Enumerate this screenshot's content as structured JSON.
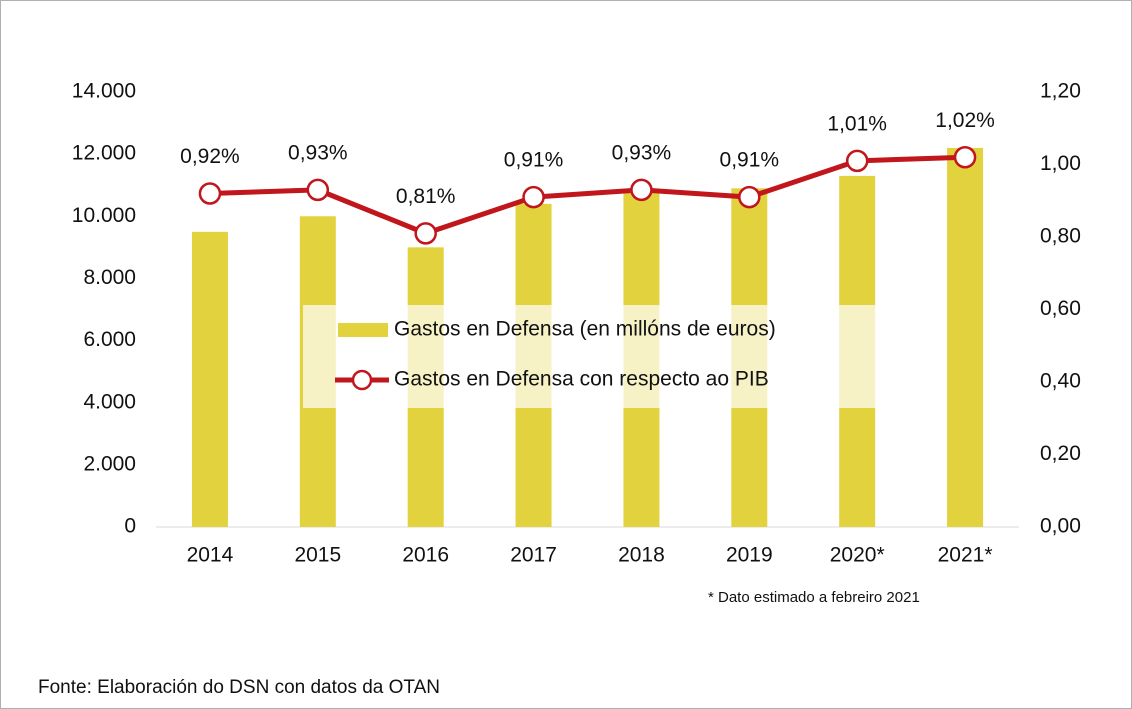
{
  "chart_data": {
    "type": "bar",
    "categories": [
      "2014",
      "2015",
      "2016",
      "2017",
      "2018",
      "2019",
      "2020*",
      "2021*"
    ],
    "series": [
      {
        "name": "Gastos en Defensa (en millóns de euros)",
        "type": "bar",
        "color": "#e2d23e",
        "values": [
          9500,
          10000,
          9000,
          10400,
          10800,
          10900,
          11300,
          12200
        ]
      },
      {
        "name": "Gastos en Defensa con respecto ao PIB",
        "type": "line",
        "axis": "y2",
        "color": "#c0161c",
        "values": [
          0.92,
          0.93,
          0.81,
          0.91,
          0.93,
          0.91,
          1.01,
          1.02
        ],
        "value_labels": [
          "0,92%",
          "0,93%",
          "0,81%",
          "0,91%",
          "0,93%",
          "0,91%",
          "1,01%",
          "1,02%"
        ]
      }
    ],
    "ylim": [
      0,
      14000
    ],
    "yticks": [
      0,
      {
        "value": 2000,
        "label": "2.000"
      },
      {
        "value": 4000,
        "label": "4.000"
      },
      {
        "value": 6000,
        "label": "6.000"
      },
      {
        "value": 8000,
        "label": "8.000"
      },
      {
        "value": 10000,
        "label": "10.000"
      },
      {
        "value": 12000,
        "label": "12.000"
      },
      {
        "value": 14000,
        "label": "14.000"
      }
    ],
    "y2lim": [
      0,
      1.2
    ],
    "y2ticks": [
      {
        "value": 0,
        "label": "0,00"
      },
      {
        "value": 0.2,
        "label": "0,20"
      },
      {
        "value": 0.4,
        "label": "0,40"
      },
      {
        "value": 0.6,
        "label": "0,60"
      },
      {
        "value": 0.8,
        "label": "0,80"
      },
      {
        "value": 1.0,
        "label": "1,00"
      },
      {
        "value": 1.2,
        "label": "1,20"
      }
    ],
    "legend": "center",
    "footnote": "* Dato estimado a febreiro 2021",
    "source": "Fonte: Elaboración do  DSN con datos da OTAN"
  }
}
